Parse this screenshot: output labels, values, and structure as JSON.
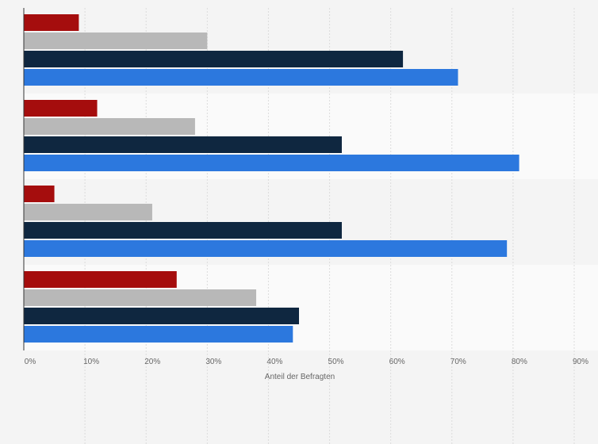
{
  "chart_data": {
    "type": "bar",
    "orientation": "horizontal",
    "title": "",
    "xlabel": "Anteil der Befragten",
    "ylabel": "",
    "xlim": [
      0,
      90
    ],
    "x_ticks": [
      "0%",
      "10%",
      "20%",
      "30%",
      "40%",
      "50%",
      "60%",
      "70%",
      "80%",
      "90%"
    ],
    "grid": true,
    "legend": "none",
    "categories": [
      "",
      "",
      "",
      ""
    ],
    "series": [
      {
        "color": "#a50d0d",
        "values": [
          9,
          12,
          5,
          25
        ]
      },
      {
        "color": "#b8b8b8",
        "values": [
          30,
          28,
          21,
          38
        ]
      },
      {
        "color": "#0f2740",
        "values": [
          62,
          52,
          52,
          45
        ]
      },
      {
        "color": "#2c78de",
        "values": [
          71,
          81,
          79,
          44
        ]
      }
    ]
  }
}
